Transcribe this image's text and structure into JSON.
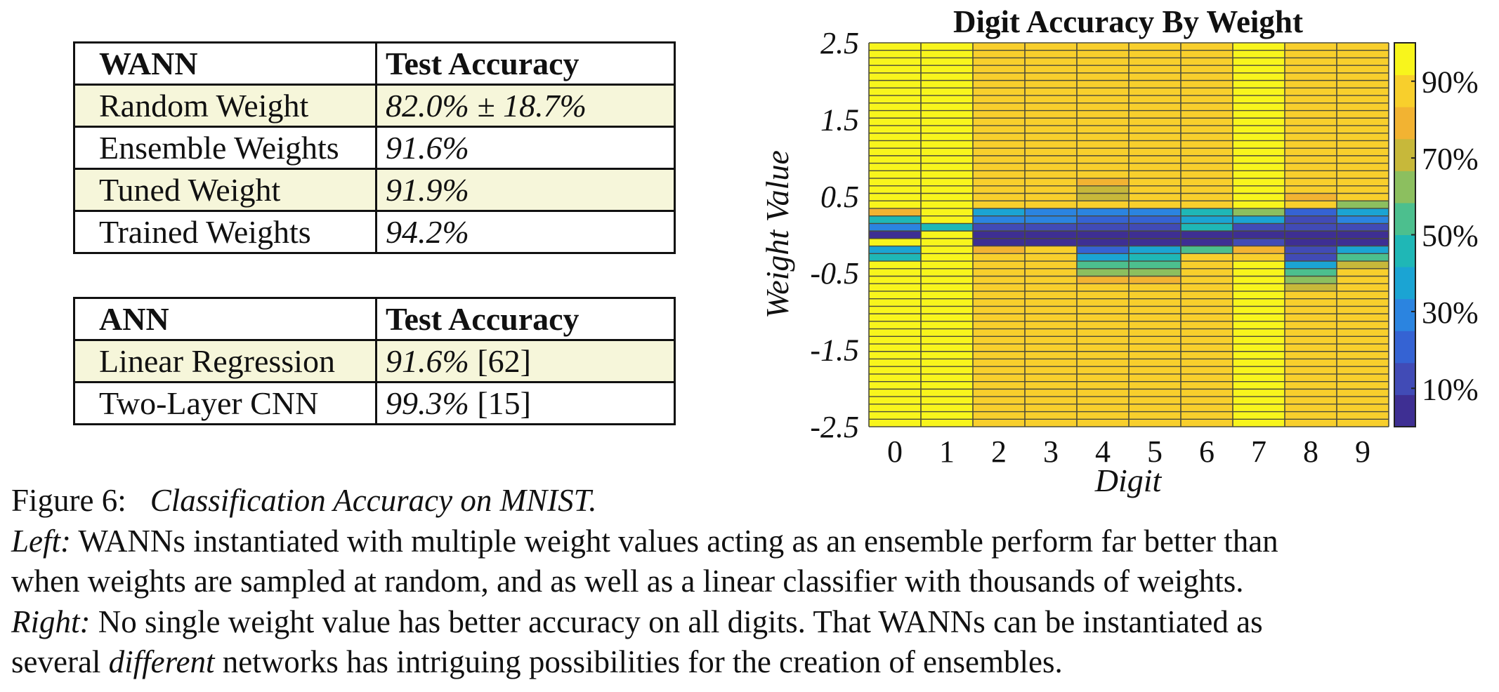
{
  "wann_table": {
    "header": {
      "col1": "WANN",
      "col2": "Test Accuracy"
    },
    "rows": [
      {
        "name": "Random Weight",
        "value": "82.0% ± 18.7%",
        "highlight": true
      },
      {
        "name": "Ensemble Weights",
        "value": "91.6%",
        "highlight": false
      },
      {
        "name": "Tuned Weight",
        "value": "91.9%",
        "highlight": true
      },
      {
        "name": "Trained Weights",
        "value": "94.2%",
        "highlight": false
      }
    ]
  },
  "ann_table": {
    "header": {
      "col1": "ANN",
      "col2": "Test Accuracy"
    },
    "rows": [
      {
        "name": "Linear Regression",
        "value": "91.6%",
        "ref": "[62]",
        "highlight": true
      },
      {
        "name": "Two-Layer CNN",
        "value": "99.3%",
        "ref": "[15]",
        "highlight": false
      }
    ]
  },
  "chart_data": {
    "type": "heatmap",
    "title": "Digit Accuracy By Weight",
    "xlabel": "Digit",
    "ylabel": "Weight Value",
    "x_categories": [
      "0",
      "1",
      "2",
      "3",
      "4",
      "5",
      "6",
      "7",
      "8",
      "9"
    ],
    "y_ticks": [
      "2.5",
      "1.5",
      "0.5",
      "-0.5",
      "-1.5",
      "-2.5"
    ],
    "ylim": [
      -2.5,
      2.5
    ],
    "n_rows": 51,
    "colorbar_ticks": [
      "10%",
      "30%",
      "50%",
      "70%",
      "90%"
    ],
    "colorbar_range": [
      0,
      100
    ],
    "colormap": [
      "#3e2f93",
      "#414bb6",
      "#3563d3",
      "#2b84e0",
      "#1ba4d3",
      "#1fb7b6",
      "#4cbf8e",
      "#8cbf5f",
      "#c7b83a",
      "#f2b332",
      "#f8cf2c",
      "#f8f51c"
    ],
    "base_accuracy": [
      96,
      98,
      86,
      90,
      89,
      84,
      90,
      92,
      86,
      88
    ],
    "dip_rows_weight": [
      0.3,
      0.2,
      0.1,
      0.0,
      -0.1,
      -0.2,
      -0.3,
      -0.4,
      -0.5,
      -0.6,
      -0.7
    ],
    "dip_accuracy": [
      [
        75,
        96,
        40,
        32,
        28,
        25,
        45,
        60,
        20,
        40
      ],
      [
        45,
        96,
        28,
        25,
        22,
        22,
        35,
        35,
        15,
        25
      ],
      [
        30,
        45,
        10,
        10,
        12,
        12,
        45,
        10,
        10,
        10
      ],
      [
        8,
        95,
        8,
        8,
        8,
        8,
        8,
        8,
        8,
        8
      ],
      [
        92,
        96,
        8,
        8,
        8,
        8,
        8,
        10,
        8,
        8
      ],
      [
        40,
        96,
        80,
        90,
        20,
        35,
        55,
        75,
        10,
        40
      ],
      [
        45,
        96,
        86,
        90,
        40,
        45,
        90,
        90,
        15,
        55
      ],
      [
        92,
        96,
        86,
        90,
        55,
        55,
        90,
        92,
        40,
        70
      ],
      [
        92,
        96,
        86,
        90,
        65,
        65,
        90,
        92,
        55,
        88
      ],
      [
        92,
        96,
        86,
        90,
        75,
        75,
        90,
        92,
        60,
        88
      ],
      [
        92,
        96,
        86,
        90,
        85,
        84,
        90,
        92,
        70,
        88
      ]
    ],
    "upper_dips": [
      {
        "digit": 4,
        "weight": 0.7,
        "accuracy": 76
      },
      {
        "digit": 4,
        "weight": 0.6,
        "accuracy": 70
      },
      {
        "digit": 4,
        "weight": 0.5,
        "accuracy": 74
      },
      {
        "digit": 8,
        "weight": 0.5,
        "accuracy": 78
      },
      {
        "digit": 9,
        "weight": 0.4,
        "accuracy": 62
      }
    ]
  },
  "caption": {
    "label": "Figure 6:",
    "title": "Classification Accuracy on MNIST.",
    "left_label": "Left:",
    "left_text": " WANNs instantiated with multiple weight values acting as an ensemble perform far better than",
    "line3": "when weights are sampled at random, and as well as a linear classifier with thousands of weights.",
    "right_label": "Right:",
    "right_text": " No single weight value has better accuracy on all digits. That WANNs can be instantiated as",
    "line5_pre": "several ",
    "line5_em": "different",
    "line5_post": " networks has intriguing possibilities for the creation of ensembles."
  }
}
